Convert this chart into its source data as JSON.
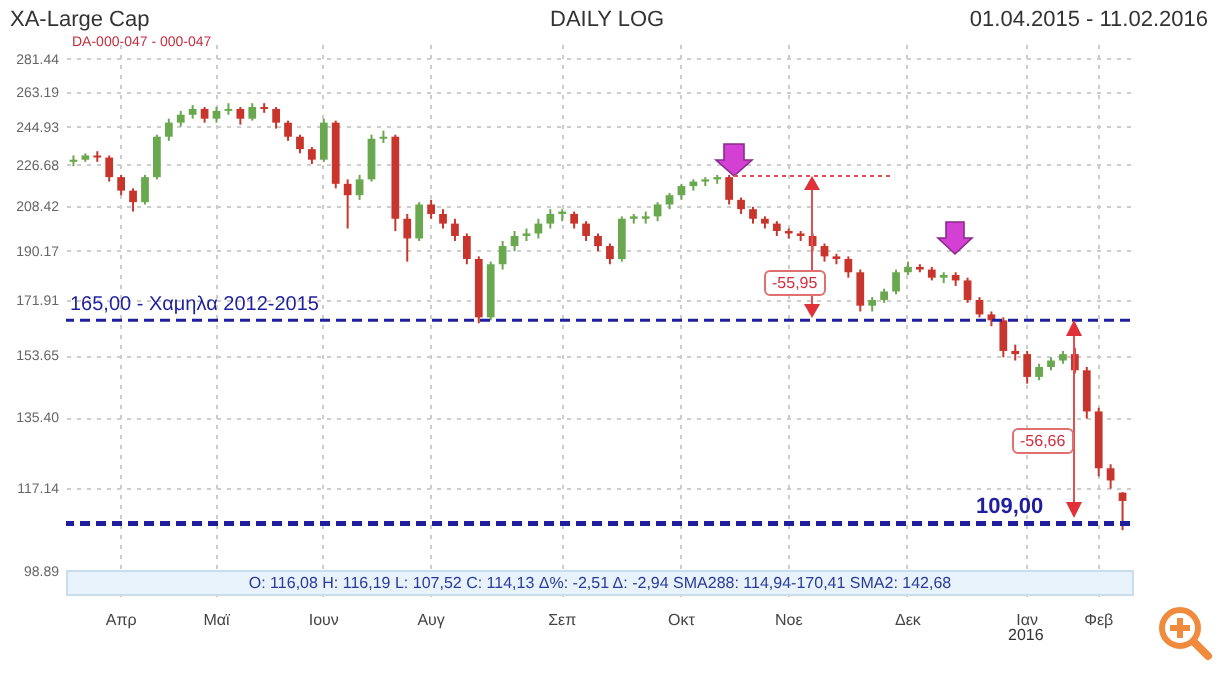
{
  "chart_data": {
    "type": "candlestick",
    "title": "XA-Large Cap",
    "subtitle": "DAILY LOG",
    "categories": [
      null,
      null,
      null,
      null,
      "Απρ",
      null,
      null,
      null,
      null,
      null,
      null,
      null,
      "Μαϊ",
      null,
      null,
      null,
      null,
      null,
      null,
      null,
      null,
      "Ιουν",
      null,
      null,
      null,
      null,
      null,
      null,
      null,
      null,
      "Αυγ",
      null,
      null,
      null,
      null,
      null,
      null,
      null,
      null,
      null,
      null,
      "Σεπ",
      null,
      null,
      null,
      null,
      null,
      null,
      null,
      null,
      null,
      "Οκτ",
      null,
      null,
      null,
      null,
      null,
      null,
      null,
      null,
      "Νοε",
      null,
      null,
      null,
      null,
      null,
      null,
      null,
      null,
      null,
      "Δεκ",
      null,
      null,
      null,
      null,
      null,
      null,
      null,
      null,
      null,
      "Ιαν",
      null,
      null,
      null,
      null,
      null,
      "Φεβ",
      null,
      null
    ],
    "ohlc": [
      [
        228,
        231,
        226,
        229
      ],
      [
        229,
        232,
        228,
        231
      ],
      [
        231,
        233,
        228,
        230
      ],
      [
        230,
        231,
        219,
        221
      ],
      [
        221,
        222,
        213,
        215
      ],
      [
        215,
        216,
        206,
        210
      ],
      [
        210,
        222,
        209,
        221
      ],
      [
        221,
        241,
        220,
        240
      ],
      [
        240,
        249,
        238,
        247
      ],
      [
        247,
        253,
        245,
        251
      ],
      [
        251,
        256,
        249,
        254
      ],
      [
        254,
        255,
        247,
        249
      ],
      [
        249,
        255,
        247,
        253
      ],
      [
        253,
        257,
        251,
        254
      ],
      [
        254,
        255,
        246,
        249
      ],
      [
        249,
        257,
        248,
        255
      ],
      [
        255,
        257,
        252,
        254
      ],
      [
        254,
        255,
        244,
        247
      ],
      [
        247,
        248,
        238,
        240
      ],
      [
        240,
        241,
        232,
        234
      ],
      [
        234,
        235,
        227,
        229
      ],
      [
        229,
        249,
        228,
        247
      ],
      [
        247,
        248,
        216,
        218
      ],
      [
        218,
        220,
        199,
        213
      ],
      [
        213,
        222,
        211,
        220
      ],
      [
        220,
        241,
        219,
        239
      ],
      [
        239,
        243,
        237,
        240
      ],
      [
        240,
        241,
        198,
        203
      ],
      [
        203,
        205,
        186,
        195
      ],
      [
        195,
        210,
        194,
        209
      ],
      [
        209,
        211,
        203,
        205
      ],
      [
        205,
        207,
        199,
        201
      ],
      [
        201,
        203,
        194,
        196
      ],
      [
        196,
        197,
        185,
        187
      ],
      [
        187,
        188,
        164,
        166
      ],
      [
        166,
        186,
        165,
        185
      ],
      [
        185,
        194,
        183,
        192
      ],
      [
        192,
        198,
        190,
        196
      ],
      [
        196,
        199,
        194,
        197
      ],
      [
        197,
        203,
        195,
        201
      ],
      [
        201,
        207,
        199,
        205
      ],
      [
        205,
        207,
        202,
        206
      ],
      [
        205,
        206,
        199,
        201
      ],
      [
        201,
        202,
        194,
        196
      ],
      [
        196,
        197,
        190,
        192
      ],
      [
        192,
        193,
        185,
        187
      ],
      [
        187,
        204,
        186,
        203
      ],
      [
        203,
        205,
        201,
        204
      ],
      [
        203,
        206,
        201,
        204
      ],
      [
        204,
        210,
        202,
        209
      ],
      [
        209,
        214,
        207,
        213
      ],
      [
        213,
        218,
        211,
        217
      ],
      [
        217,
        220,
        215,
        219
      ],
      [
        219,
        221,
        217,
        220
      ],
      [
        220,
        222,
        218,
        221
      ],
      [
        221,
        222,
        209,
        211
      ],
      [
        211,
        212,
        205,
        207
      ],
      [
        207,
        208,
        201,
        203
      ],
      [
        203,
        204,
        199,
        201
      ],
      [
        201,
        202,
        196,
        198
      ],
      [
        198,
        199,
        195,
        197
      ],
      [
        197,
        198,
        194,
        196
      ],
      [
        196,
        197,
        190,
        192
      ],
      [
        192,
        193,
        186,
        188
      ],
      [
        188,
        189,
        185,
        187
      ],
      [
        187,
        188,
        180,
        182
      ],
      [
        182,
        183,
        168,
        170
      ],
      [
        170,
        173,
        168,
        172
      ],
      [
        172,
        176,
        171,
        175
      ],
      [
        175,
        183,
        174,
        182
      ],
      [
        182,
        186,
        181,
        184
      ],
      [
        184,
        185,
        182,
        183
      ],
      [
        183,
        184,
        179,
        180
      ],
      [
        180,
        182,
        178,
        181
      ],
      [
        181,
        182,
        177,
        179
      ],
      [
        179,
        180,
        171,
        172
      ],
      [
        172,
        173,
        166,
        167
      ],
      [
        167,
        168,
        163,
        165
      ],
      [
        165,
        166,
        153,
        155
      ],
      [
        155,
        157,
        152,
        154
      ],
      [
        154,
        155,
        145,
        147
      ],
      [
        147,
        151,
        146,
        150
      ],
      [
        150,
        153,
        149,
        152
      ],
      [
        152,
        155,
        151,
        154
      ],
      [
        154,
        156,
        148,
        149
      ],
      [
        149,
        150,
        135,
        137
      ],
      [
        137,
        138,
        120,
        122
      ],
      [
        122,
        123,
        117,
        119
      ],
      [
        116.08,
        116.19,
        107.52,
        114.13
      ]
    ],
    "log": true,
    "ylim": [
      94,
      290
    ],
    "yticks": [
      281.44,
      263.19,
      244.93,
      226.68,
      208.42,
      190.17,
      171.91,
      153.65,
      {
        "value": 135.4,
        "label": "135.40"
      },
      117.14,
      98.89
    ],
    "grid": true,
    "ref_lines": [
      {
        "axis": "y",
        "value": 165,
        "label": "165,00 - Χαμηλα 2012-2015",
        "color": "#1f1f9e",
        "line_style": "dashed"
      },
      {
        "axis": "y",
        "value": 109,
        "label": "109,00",
        "color": "#1f1f9e",
        "line_style": "dashed"
      }
    ],
    "annotations": [
      "01.04.2015 - 11.02.2016",
      "DA-000-047 - 000-047",
      "-55,95",
      "-56,66",
      "O: 116,08   H: 116,19   L: 107,52   C: 114,13   Δ%: -2,51   Δ: -2,94   SMA288: 114,94-170,41   SMA2: 142,68",
      "2016"
    ]
  }
}
